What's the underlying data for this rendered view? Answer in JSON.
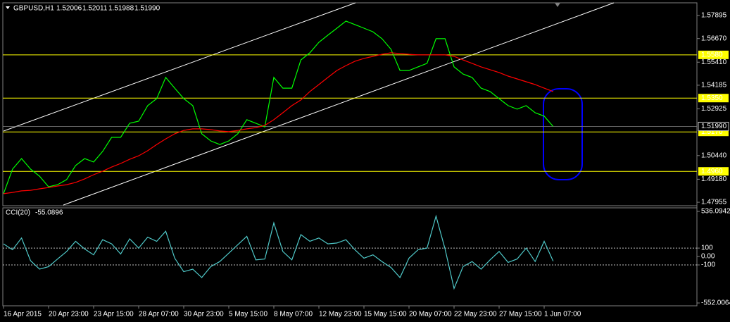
{
  "header": {
    "symbol": "GBPUSD,H1",
    "open": 1.52006,
    "high": 1.52011,
    "low": 1.51988,
    "close": {
      "value": 1.5199,
      "label": "1.51990"
    }
  },
  "chart_data": [
    {
      "type": "line",
      "title": "GBPUSD,H1",
      "categories": [
        "16 Apr 2015",
        null,
        null,
        null,
        null,
        "20 Apr 23:00",
        null,
        null,
        null,
        null,
        "23 Apr 15:00",
        null,
        null,
        null,
        null,
        "28 Apr 07:00",
        null,
        null,
        null,
        null,
        "30 Apr 23:00",
        null,
        null,
        null,
        null,
        "5 May 15:00",
        null,
        null,
        null,
        null,
        "8 May 07:00",
        null,
        null,
        null,
        null,
        "12 May 23:00",
        null,
        null,
        null,
        null,
        "15 May 15:00",
        null,
        null,
        null,
        null,
        "20 May 07:00",
        null,
        null,
        null,
        null,
        "22 May 23:00",
        null,
        null,
        null,
        null,
        "27 May 15:00",
        null,
        null,
        null,
        null,
        "1 Jun 07:00",
        null
      ],
      "series": [
        {
          "color": "#00ff00",
          "values": [
            1.4841,
            1.4972,
            1.5028,
            1.4972,
            1.4934,
            1.4878,
            1.4889,
            1.4916,
            1.4991,
            1.5028,
            1.501,
            1.5066,
            1.5141,
            1.5141,
            1.5216,
            1.5227,
            1.531,
            1.5347,
            1.546,
            1.5403,
            1.5347,
            1.531,
            1.516,
            1.5122,
            1.5103,
            1.5122,
            1.516,
            1.5235,
            1.5216,
            1.5197,
            1.546,
            1.5403,
            1.5403,
            1.5553,
            1.5591,
            1.5647,
            1.5685,
            1.5722,
            1.576,
            1.5741,
            1.5722,
            1.5703,
            1.5666,
            1.561,
            1.5497,
            1.5497,
            1.5516,
            1.5535,
            1.5666,
            1.5666,
            1.5516,
            1.5478,
            1.546,
            1.5403,
            1.5385,
            1.5347,
            1.531,
            1.5291,
            1.531,
            1.5272,
            1.5254,
            1.5199
          ]
        },
        {
          "color": "#ff0000",
          "values": [
            1.4841,
            1.4848,
            1.4856,
            1.4859,
            1.4867,
            1.4874,
            1.4882,
            1.4889,
            1.4901,
            1.492,
            1.4942,
            1.4961,
            1.4983,
            1.5002,
            1.5024,
            1.5043,
            1.507,
            1.5103,
            1.5133,
            1.516,
            1.5178,
            1.5186,
            1.5186,
            1.5182,
            1.5175,
            1.5171,
            1.5178,
            1.5186,
            1.5193,
            1.5205,
            1.5235,
            1.5272,
            1.531,
            1.534,
            1.5385,
            1.5422,
            1.546,
            1.5497,
            1.5523,
            1.5546,
            1.5561,
            1.5572,
            1.5583,
            1.5591,
            1.5587,
            1.5583,
            1.558,
            1.558,
            1.558,
            1.558,
            1.5572,
            1.5553,
            1.5535,
            1.5516,
            1.5501,
            1.5486,
            1.5467,
            1.5452,
            1.5437,
            1.5422,
            1.5403,
            1.5385
          ]
        }
      ],
      "ylim": [
        1.4777,
        1.5857
      ],
      "yticks": [
        1.57895,
        {
          "value": 1.5667,
          "label": "1.56670"
        },
        {
          "value": 1.5541,
          "label": "1.55410"
        },
        1.54185,
        1.52925,
        {
          "value": 1.5044,
          "label": "1.50440"
        },
        {
          "value": 1.4918,
          "label": "1.49180"
        },
        1.47955
      ],
      "levels": [
        {
          "value": 1.558,
          "label": "1.5580"
        },
        {
          "value": 1.535,
          "label": "1.5350"
        },
        {
          "value": 1.517,
          "label": "1.5170"
        },
        {
          "value": 1.496,
          "label": "1.4960"
        }
      ],
      "level_color": "#ffff00",
      "current_price": {
        "value": 1.5199,
        "label": "1.51990"
      },
      "grid": false
    },
    {
      "type": "line",
      "series": [
        {
          "name": "CCI(20)",
          "color": "#4fc8c8",
          "values": [
            150,
            80,
            220,
            -50,
            -150,
            -120,
            -30,
            60,
            180,
            90,
            20,
            200,
            150,
            30,
            210,
            100,
            230,
            180,
            300,
            -20,
            -180,
            -150,
            -250,
            -120,
            -60,
            40,
            140,
            240,
            -40,
            -30,
            400,
            60,
            -40,
            260,
            180,
            220,
            150,
            160,
            200,
            80,
            -20,
            20,
            -60,
            -130,
            -250,
            -20,
            80,
            100,
            480,
            90,
            -380,
            -120,
            -60,
            -150,
            -40,
            60,
            -70,
            -30,
            100,
            -60,
            180,
            -55.0896
          ]
        }
      ],
      "ylim": [
        -552.0064,
        536.0942
      ],
      "yticks": [
        536.0942,
        100,
        {
          "value": 0,
          "label": "0.00"
        },
        -100,
        -552.0064
      ],
      "levels": [
        100,
        -100
      ],
      "grid": false
    }
  ]
}
